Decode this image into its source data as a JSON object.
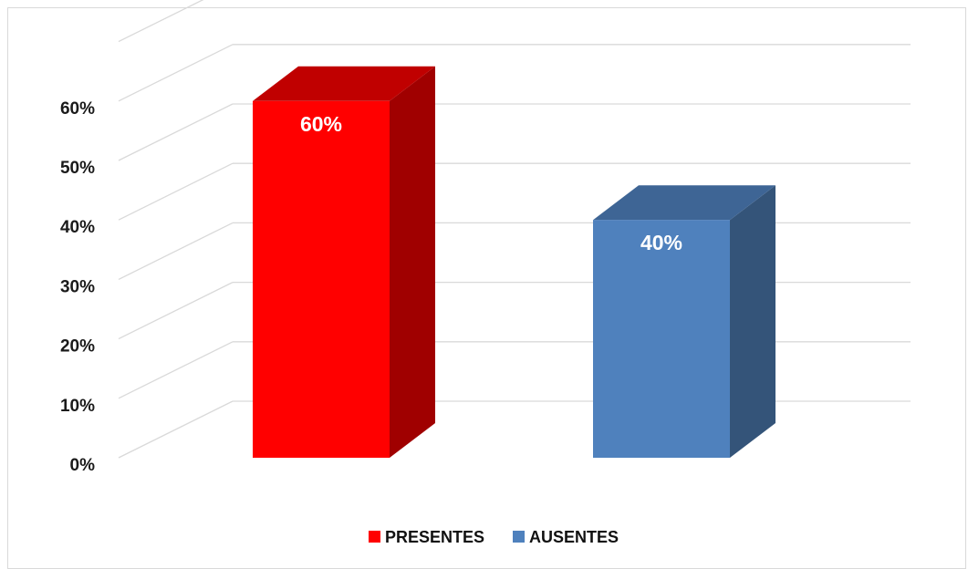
{
  "chart_data": {
    "type": "bar",
    "style": "3d",
    "categories": [
      "PRESENTES",
      "AUSENTES"
    ],
    "values": [
      60,
      40
    ],
    "value_unit": "%",
    "data_labels": [
      "60%",
      "40%"
    ],
    "ylim": [
      0,
      70
    ],
    "yticks": [
      0,
      10,
      20,
      30,
      40,
      50,
      60
    ],
    "ytick_labels": [
      "0%",
      "10%",
      "20%",
      "30%",
      "40%",
      "50%",
      "60%"
    ],
    "grid": true,
    "legend": {
      "placement": "bottom",
      "entries": [
        "PRESENTES",
        "AUSENTES"
      ]
    },
    "colors": {
      "PRESENTES": {
        "front": "#ff0000",
        "top": "#c00000",
        "side": "#a00000"
      },
      "AUSENTES": {
        "front": "#4f81bd",
        "top": "#3e6595",
        "side": "#345479"
      },
      "grid": "#d9d9d9"
    }
  }
}
